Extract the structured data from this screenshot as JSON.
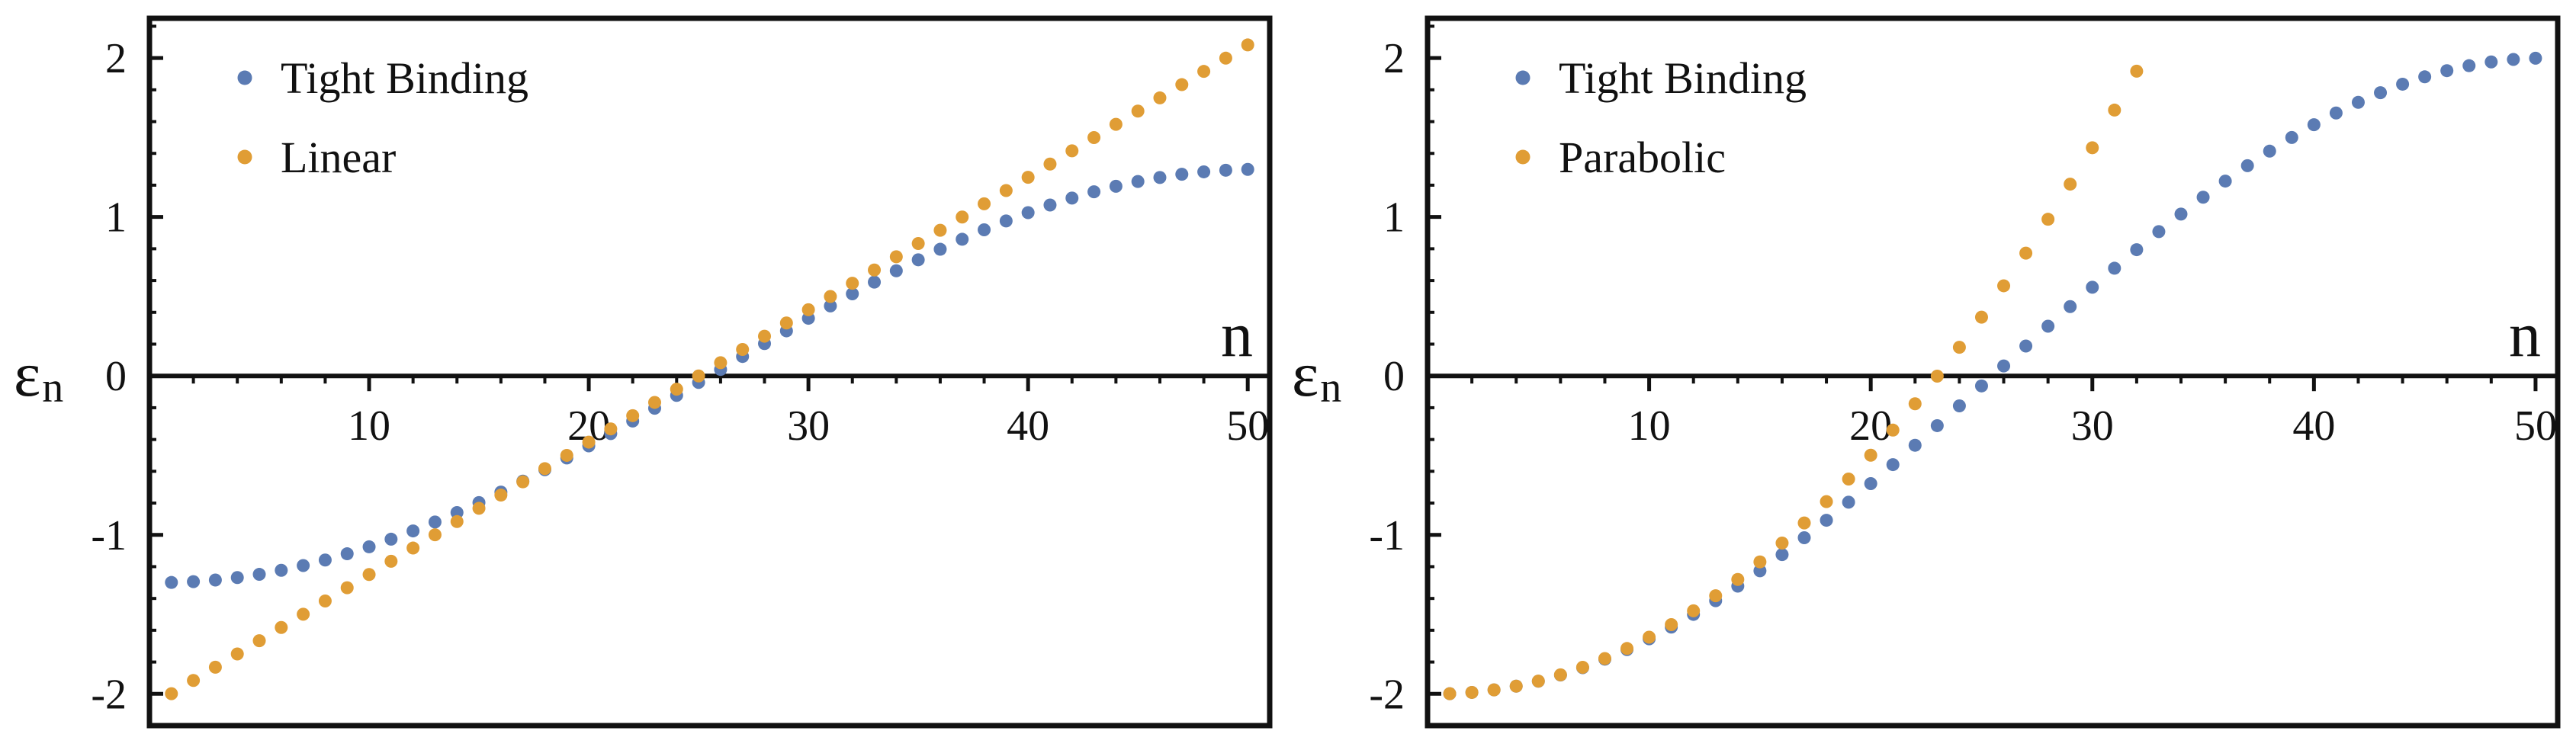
{
  "colors": {
    "tight_binding": "#5b7bb3",
    "model": "#e09d35",
    "frame": "#111111"
  },
  "chart_data": [
    {
      "type": "scatter",
      "xlabel": "n",
      "ylabel": "ε",
      "ylabel_sub": "n",
      "xlim": [
        0,
        51
      ],
      "ylim": [
        -2.2,
        2.25
      ],
      "xticks": [
        10,
        20,
        30,
        40,
        50
      ],
      "yticks": [
        -2,
        -1,
        0,
        1,
        2
      ],
      "legend_position": "top-left",
      "series": [
        {
          "name": "Tight Binding",
          "kind": "tb",
          "amplitude": 1.3,
          "x": "n = 1..50"
        },
        {
          "name": "Linear",
          "kind": "linear",
          "slope": 0.0833,
          "x": "n = 1..50"
        }
      ]
    },
    {
      "type": "scatter",
      "xlabel": "n",
      "ylabel": "ε",
      "ylabel_sub": "n",
      "xlim": [
        0,
        51
      ],
      "ylim": [
        -2.2,
        2.25
      ],
      "xticks": [
        10,
        20,
        30,
        40,
        50
      ],
      "yticks": [
        -2,
        -1,
        0,
        1,
        2
      ],
      "legend_position": "top-left",
      "series": [
        {
          "name": "Tight Binding",
          "kind": "tb",
          "amplitude": 2.0,
          "x": "n = 1..50"
        },
        {
          "name": "Parabolic",
          "kind": "parabolic",
          "x": "n = 1..32"
        }
      ]
    }
  ]
}
